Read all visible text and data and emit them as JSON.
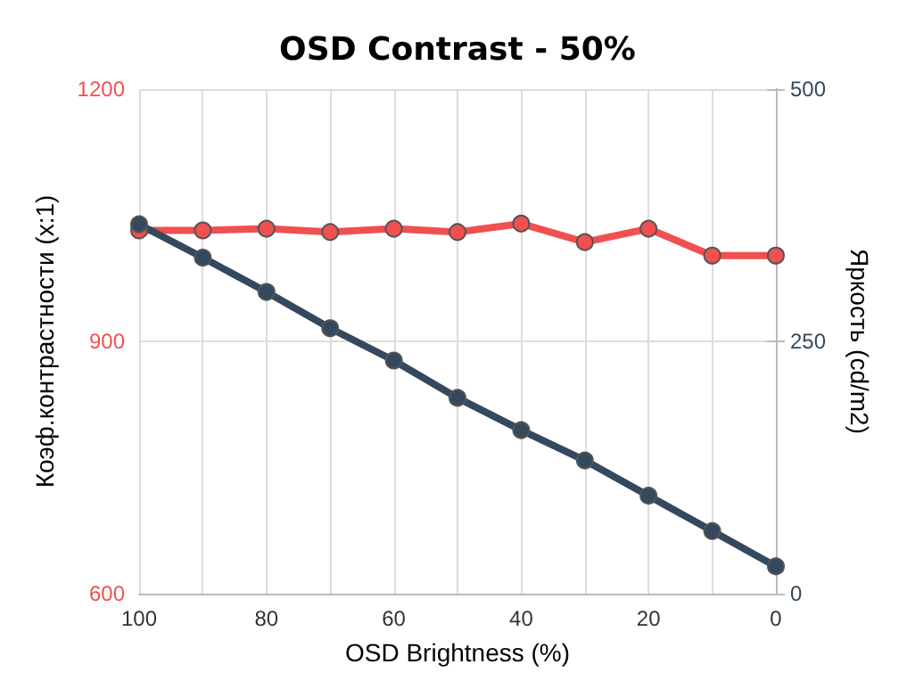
{
  "chart_data": {
    "type": "line",
    "title": "OSD Contrast - 50%",
    "xlabel": "OSD Brightness (%)",
    "ylabel": "Коэф.контрастности (x:1)",
    "y2label": "Яркость (cd/m2)",
    "x": [
      100,
      90,
      80,
      70,
      60,
      50,
      40,
      30,
      20,
      10,
      0
    ],
    "series": [
      {
        "color": "#f05050",
        "values": [
          1032,
          1032,
          1034,
          1030,
          1034,
          1030,
          1040,
          1018,
          1034,
          1002,
          1002
        ]
      },
      {
        "color": "#34495e",
        "axis": "y2",
        "values": [
          366,
          333,
          299,
          263,
          231,
          194,
          162,
          132,
          97,
          62,
          27
        ]
      }
    ],
    "xlim": [
      100,
      0
    ],
    "xticks": [
      {
        "value": 0,
        "label": "0"
      },
      {
        "value": 10,
        "label": null
      },
      {
        "value": 20,
        "label": "20"
      },
      {
        "value": 30,
        "label": null
      },
      {
        "value": 40,
        "label": "40"
      },
      {
        "value": 50,
        "label": null
      },
      {
        "value": 60,
        "label": "60"
      },
      {
        "value": 70,
        "label": null
      },
      {
        "value": 80,
        "label": "80"
      },
      {
        "value": 90,
        "label": null
      },
      {
        "value": 100,
        "label": "100"
      }
    ],
    "ylim": [
      600,
      1200
    ],
    "yticks": [
      600,
      900,
      1200
    ],
    "y2lim": [
      0,
      500
    ],
    "y2ticks": [
      0,
      250,
      500
    ],
    "grid": true,
    "marker": "circle",
    "line_style": "solid"
  }
}
